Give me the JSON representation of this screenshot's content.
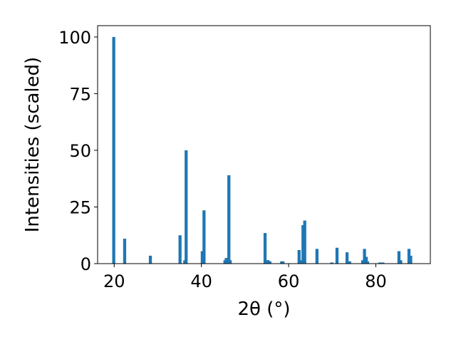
{
  "chart_data": {
    "type": "bar",
    "title": "",
    "xlabel": "2θ (°)",
    "ylabel": "Intensities (scaled)",
    "xlim": [
      16.2,
      92.5
    ],
    "ylim": [
      0,
      105
    ],
    "xticks": [
      20,
      40,
      60,
      80
    ],
    "yticks": [
      0,
      25,
      50,
      75,
      100
    ],
    "xtick_labels": [
      "20",
      "40",
      "60",
      "80"
    ],
    "ytick_labels": [
      "0",
      "25",
      "50",
      "75",
      "100"
    ],
    "grid": false,
    "legend": "none",
    "bar_color": "#1f77b4",
    "bar_width": 0.7,
    "x": [
      19.9,
      22.4,
      28.3,
      35.1,
      36.2,
      36.5,
      40.2,
      40.6,
      45.4,
      45.7,
      46.3,
      46.6,
      54.6,
      55.0,
      55.3,
      55.7,
      58.4,
      58.7,
      62.4,
      62.8,
      63.3,
      63.7,
      66.5,
      69.9,
      71.1,
      73.4,
      74.0,
      77.0,
      77.4,
      77.8,
      78.1,
      80.9,
      81.6,
      85.3,
      85.7,
      87.6,
      88.0
    ],
    "values": [
      100,
      11,
      3.5,
      12.5,
      1.5,
      50,
      5.5,
      23.5,
      1.5,
      2.5,
      39,
      1.5,
      13.5,
      1.5,
      1.5,
      1,
      1,
      1,
      6,
      1.5,
      17,
      19,
      6.5,
      0.5,
      7,
      5,
      1,
      1.5,
      6.5,
      3,
      1,
      0.5,
      0.5,
      5.5,
      1.5,
      6.5,
      3.5
    ]
  }
}
